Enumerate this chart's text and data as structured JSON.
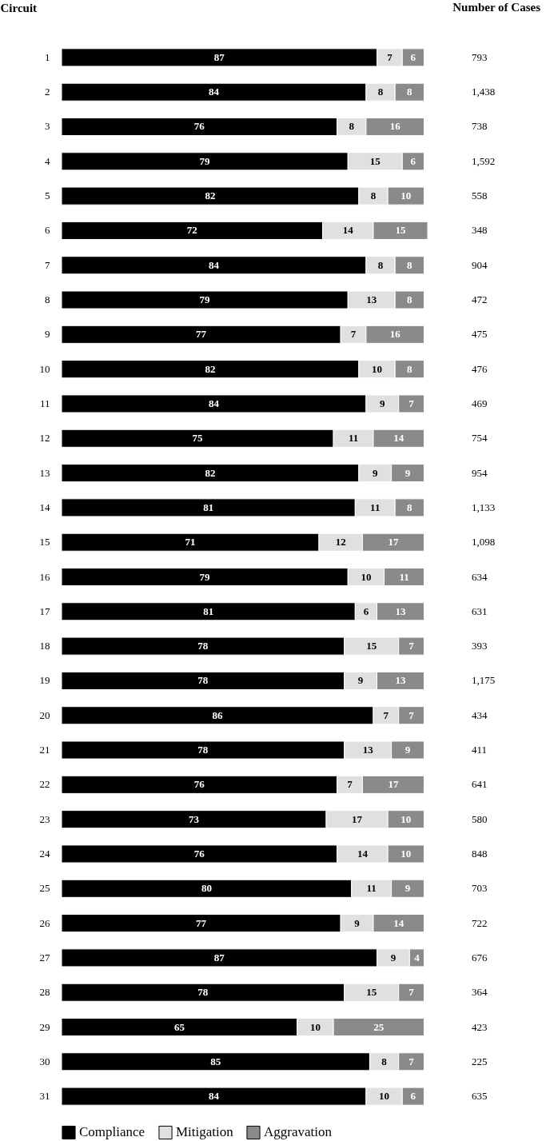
{
  "chart_data": {
    "type": "bar",
    "orientation": "horizontal",
    "stacked": true,
    "ylabel": "Circuit",
    "y2label": "Number of Cases",
    "categories": [
      "1",
      "2",
      "3",
      "4",
      "5",
      "6",
      "7",
      "8",
      "9",
      "10",
      "11",
      "12",
      "13",
      "14",
      "15",
      "16",
      "17",
      "18",
      "19",
      "20",
      "21",
      "22",
      "23",
      "24",
      "25",
      "26",
      "27",
      "28",
      "29",
      "30",
      "31"
    ],
    "series": [
      {
        "name": "Compliance",
        "color": "#000000",
        "values": [
          87,
          84,
          76,
          79,
          82,
          72,
          84,
          79,
          77,
          82,
          84,
          75,
          82,
          81,
          71,
          79,
          81,
          78,
          78,
          86,
          78,
          76,
          73,
          76,
          80,
          77,
          87,
          78,
          65,
          85,
          84
        ]
      },
      {
        "name": "Mitigation",
        "color": "#e0e0e0",
        "values": [
          7,
          8,
          8,
          15,
          8,
          14,
          8,
          13,
          7,
          10,
          9,
          11,
          9,
          11,
          12,
          10,
          6,
          15,
          9,
          7,
          13,
          7,
          17,
          14,
          11,
          9,
          9,
          15,
          10,
          8,
          10
        ]
      },
      {
        "name": "Aggravation",
        "color": "#8a8a8a",
        "values": [
          6,
          8,
          16,
          6,
          10,
          15,
          8,
          8,
          16,
          8,
          7,
          14,
          9,
          8,
          17,
          11,
          13,
          7,
          13,
          7,
          9,
          17,
          10,
          10,
          9,
          14,
          4,
          7,
          25,
          7,
          6
        ]
      }
    ],
    "xlim": [
      0,
      101
    ],
    "data_labels": true,
    "tick_labels": "y",
    "legend": "bottom",
    "grid": false,
    "annotations": [
      "793",
      "1,438",
      "738",
      "1,592",
      "558",
      "348",
      "904",
      "472",
      "475",
      "476",
      "469",
      "754",
      "954",
      "1,133",
      "1,098",
      "634",
      "631",
      "393",
      "1,175",
      "434",
      "411",
      "641",
      "580",
      "848",
      "703",
      "722",
      "676",
      "364",
      "423",
      "225",
      "635"
    ]
  }
}
